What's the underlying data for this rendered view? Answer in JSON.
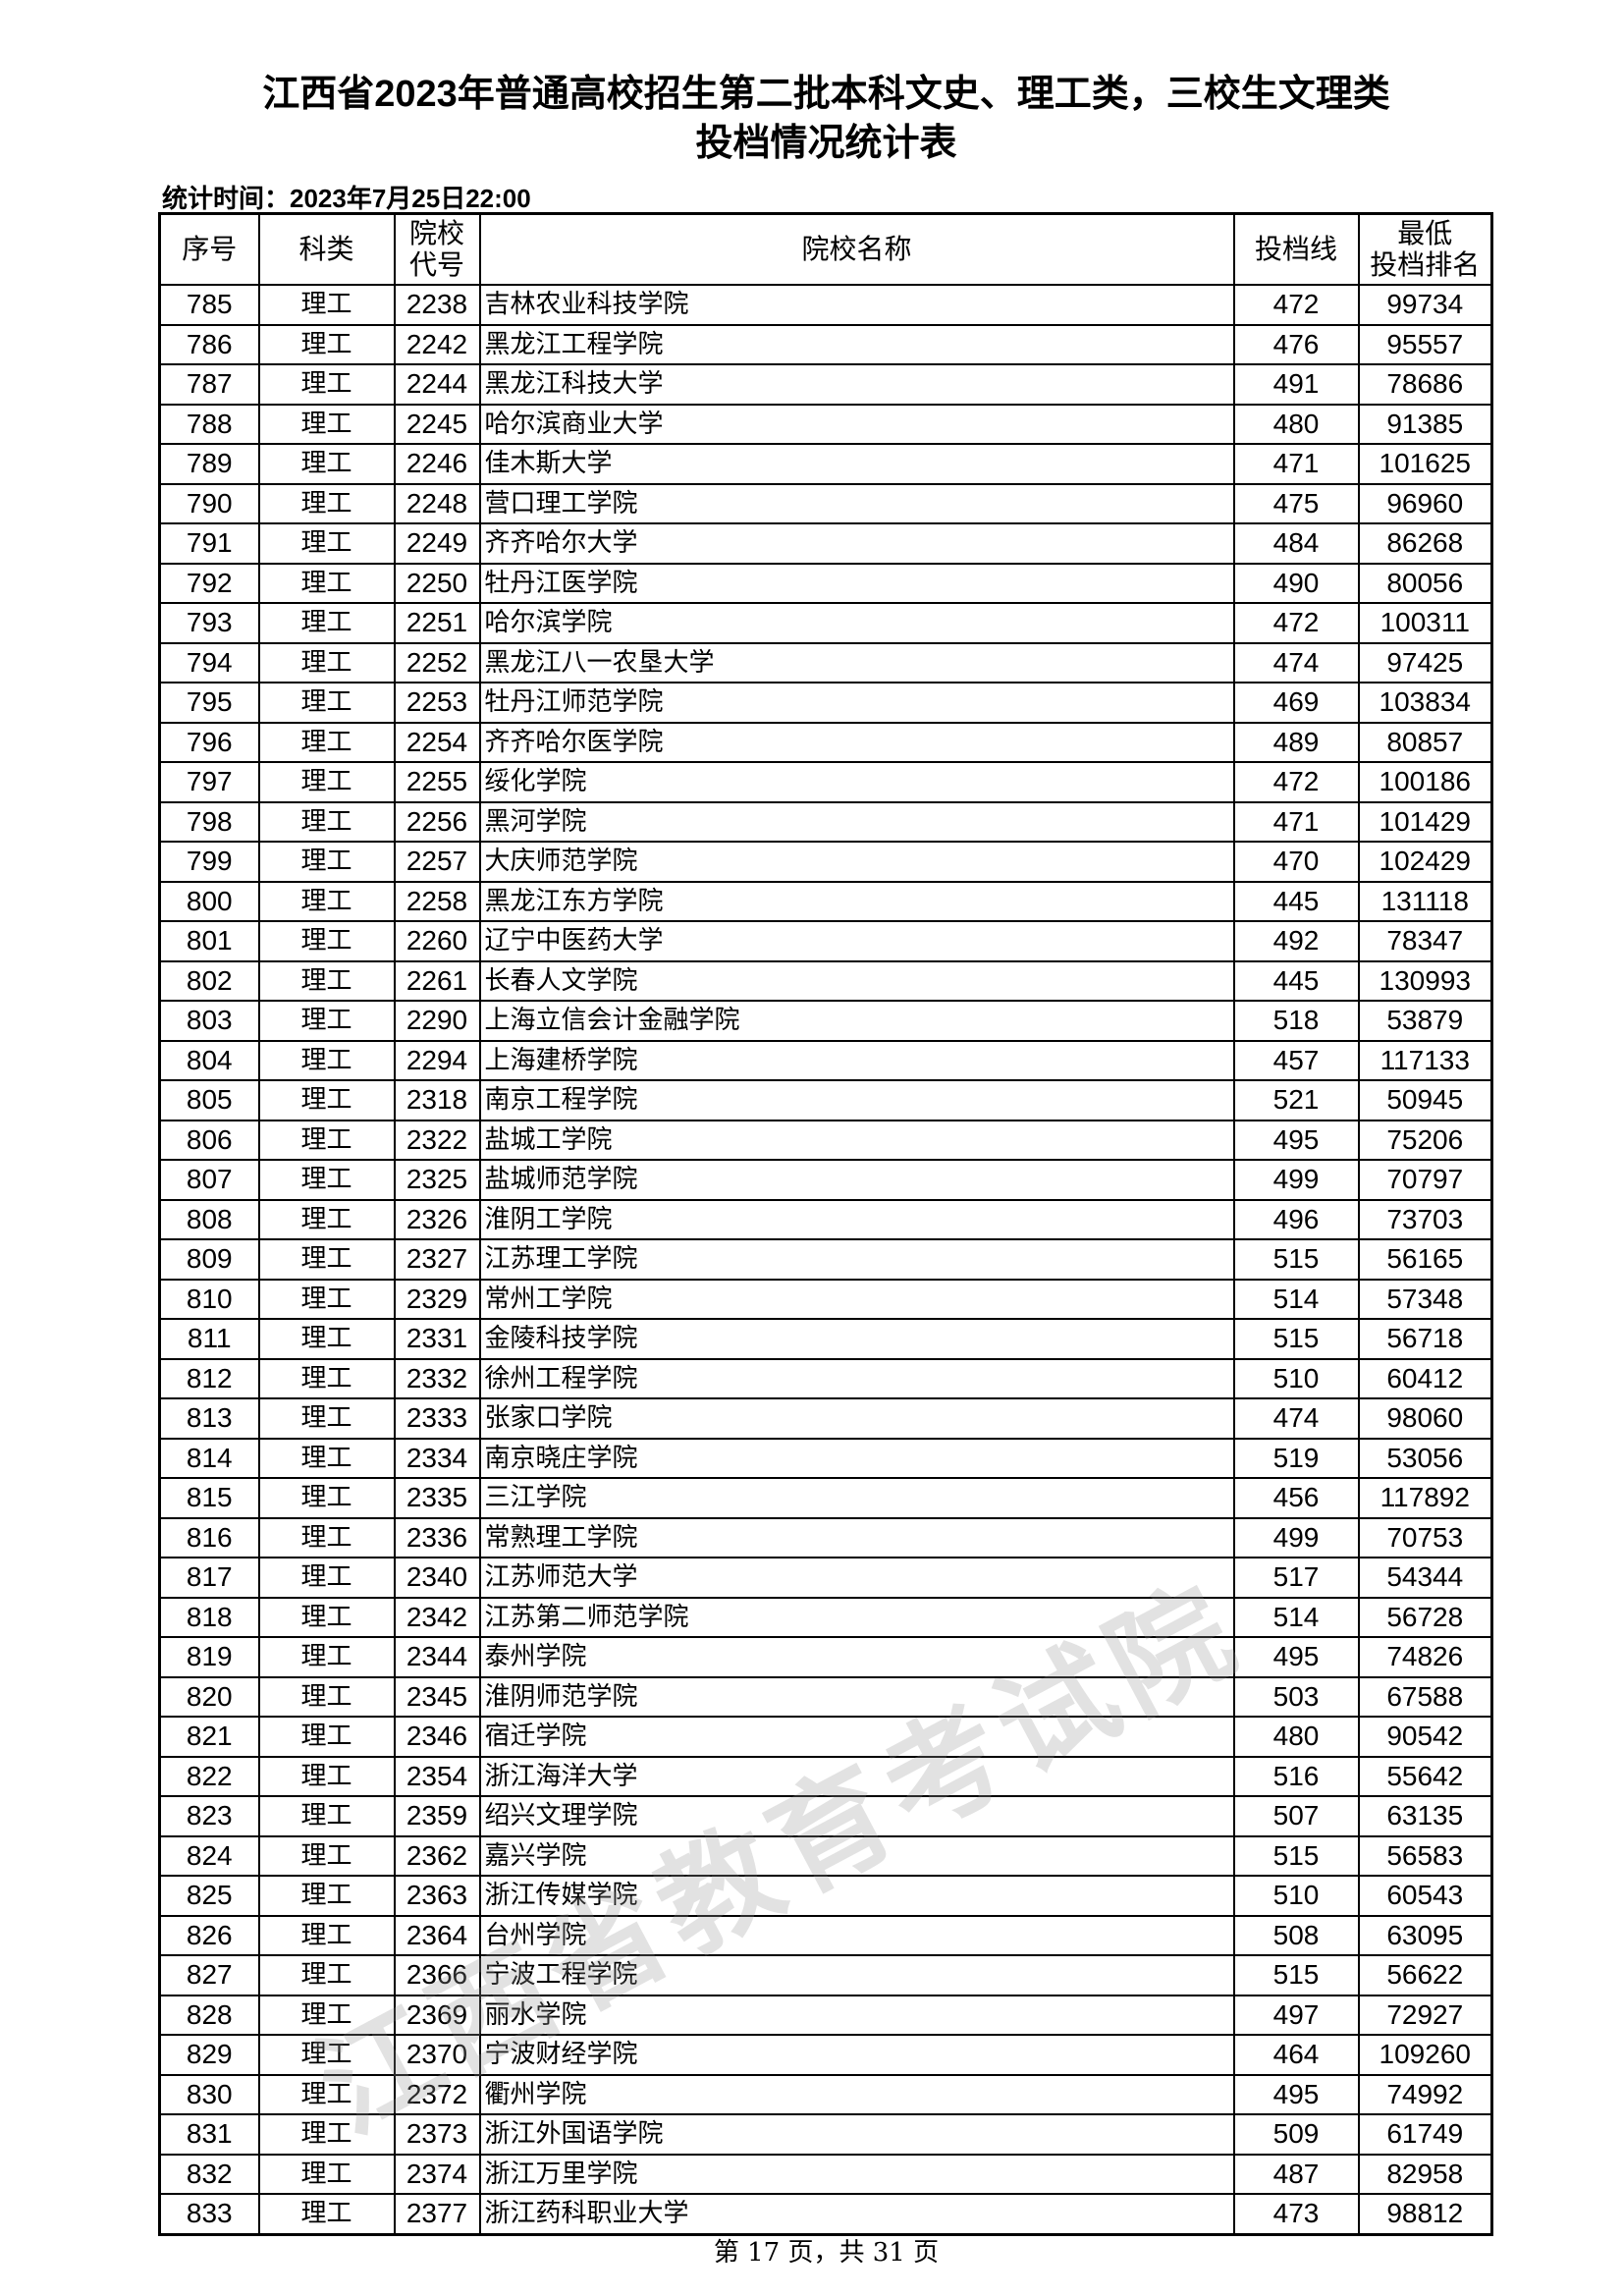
{
  "title_line1": "江西省2023年普通高校招生第二批本科文史、理工类，三校生文理类",
  "title_line2": "投档情况统计表",
  "stat_time": "统计时间：2023年7月25日22:00",
  "watermark": "江西省教育考试院",
  "columns": [
    "序号",
    "科类",
    "院校代号",
    "院校名称",
    "投档线",
    "最低投档排名"
  ],
  "columns_display": {
    "code_line1": "院校",
    "code_line2": "代号",
    "rank_line1": "最低",
    "rank_line2": "投档排名"
  },
  "rows": [
    [
      "785",
      "理工",
      "2238",
      "吉林农业科技学院",
      "472",
      "99734"
    ],
    [
      "786",
      "理工",
      "2242",
      "黑龙江工程学院",
      "476",
      "95557"
    ],
    [
      "787",
      "理工",
      "2244",
      "黑龙江科技大学",
      "491",
      "78686"
    ],
    [
      "788",
      "理工",
      "2245",
      "哈尔滨商业大学",
      "480",
      "91385"
    ],
    [
      "789",
      "理工",
      "2246",
      "佳木斯大学",
      "471",
      "101625"
    ],
    [
      "790",
      "理工",
      "2248",
      "营口理工学院",
      "475",
      "96960"
    ],
    [
      "791",
      "理工",
      "2249",
      "齐齐哈尔大学",
      "484",
      "86268"
    ],
    [
      "792",
      "理工",
      "2250",
      "牡丹江医学院",
      "490",
      "80056"
    ],
    [
      "793",
      "理工",
      "2251",
      "哈尔滨学院",
      "472",
      "100311"
    ],
    [
      "794",
      "理工",
      "2252",
      "黑龙江八一农垦大学",
      "474",
      "97425"
    ],
    [
      "795",
      "理工",
      "2253",
      "牡丹江师范学院",
      "469",
      "103834"
    ],
    [
      "796",
      "理工",
      "2254",
      "齐齐哈尔医学院",
      "489",
      "80857"
    ],
    [
      "797",
      "理工",
      "2255",
      "绥化学院",
      "472",
      "100186"
    ],
    [
      "798",
      "理工",
      "2256",
      "黑河学院",
      "471",
      "101429"
    ],
    [
      "799",
      "理工",
      "2257",
      "大庆师范学院",
      "470",
      "102429"
    ],
    [
      "800",
      "理工",
      "2258",
      "黑龙江东方学院",
      "445",
      "131118"
    ],
    [
      "801",
      "理工",
      "2260",
      "辽宁中医药大学",
      "492",
      "78347"
    ],
    [
      "802",
      "理工",
      "2261",
      "长春人文学院",
      "445",
      "130993"
    ],
    [
      "803",
      "理工",
      "2290",
      "上海立信会计金融学院",
      "518",
      "53879"
    ],
    [
      "804",
      "理工",
      "2294",
      "上海建桥学院",
      "457",
      "117133"
    ],
    [
      "805",
      "理工",
      "2318",
      "南京工程学院",
      "521",
      "50945"
    ],
    [
      "806",
      "理工",
      "2322",
      "盐城工学院",
      "495",
      "75206"
    ],
    [
      "807",
      "理工",
      "2325",
      "盐城师范学院",
      "499",
      "70797"
    ],
    [
      "808",
      "理工",
      "2326",
      "淮阴工学院",
      "496",
      "73703"
    ],
    [
      "809",
      "理工",
      "2327",
      "江苏理工学院",
      "515",
      "56165"
    ],
    [
      "810",
      "理工",
      "2329",
      "常州工学院",
      "514",
      "57348"
    ],
    [
      "811",
      "理工",
      "2331",
      "金陵科技学院",
      "515",
      "56718"
    ],
    [
      "812",
      "理工",
      "2332",
      "徐州工程学院",
      "510",
      "60412"
    ],
    [
      "813",
      "理工",
      "2333",
      "张家口学院",
      "474",
      "98060"
    ],
    [
      "814",
      "理工",
      "2334",
      "南京晓庄学院",
      "519",
      "53056"
    ],
    [
      "815",
      "理工",
      "2335",
      "三江学院",
      "456",
      "117892"
    ],
    [
      "816",
      "理工",
      "2336",
      "常熟理工学院",
      "499",
      "70753"
    ],
    [
      "817",
      "理工",
      "2340",
      "江苏师范大学",
      "517",
      "54344"
    ],
    [
      "818",
      "理工",
      "2342",
      "江苏第二师范学院",
      "514",
      "56728"
    ],
    [
      "819",
      "理工",
      "2344",
      "泰州学院",
      "495",
      "74826"
    ],
    [
      "820",
      "理工",
      "2345",
      "淮阴师范学院",
      "503",
      "67588"
    ],
    [
      "821",
      "理工",
      "2346",
      "宿迁学院",
      "480",
      "90542"
    ],
    [
      "822",
      "理工",
      "2354",
      "浙江海洋大学",
      "516",
      "55642"
    ],
    [
      "823",
      "理工",
      "2359",
      "绍兴文理学院",
      "507",
      "63135"
    ],
    [
      "824",
      "理工",
      "2362",
      "嘉兴学院",
      "515",
      "56583"
    ],
    [
      "825",
      "理工",
      "2363",
      "浙江传媒学院",
      "510",
      "60543"
    ],
    [
      "826",
      "理工",
      "2364",
      "台州学院",
      "508",
      "63095"
    ],
    [
      "827",
      "理工",
      "2366",
      "宁波工程学院",
      "515",
      "56622"
    ],
    [
      "828",
      "理工",
      "2369",
      "丽水学院",
      "497",
      "72927"
    ],
    [
      "829",
      "理工",
      "2370",
      "宁波财经学院",
      "464",
      "109260"
    ],
    [
      "830",
      "理工",
      "2372",
      "衢州学院",
      "495",
      "74992"
    ],
    [
      "831",
      "理工",
      "2373",
      "浙江外国语学院",
      "509",
      "61749"
    ],
    [
      "832",
      "理工",
      "2374",
      "浙江万里学院",
      "487",
      "82958"
    ],
    [
      "833",
      "理工",
      "2377",
      "浙江药科职业大学",
      "473",
      "98812"
    ]
  ],
  "footer": "第 17 页，共 31 页"
}
